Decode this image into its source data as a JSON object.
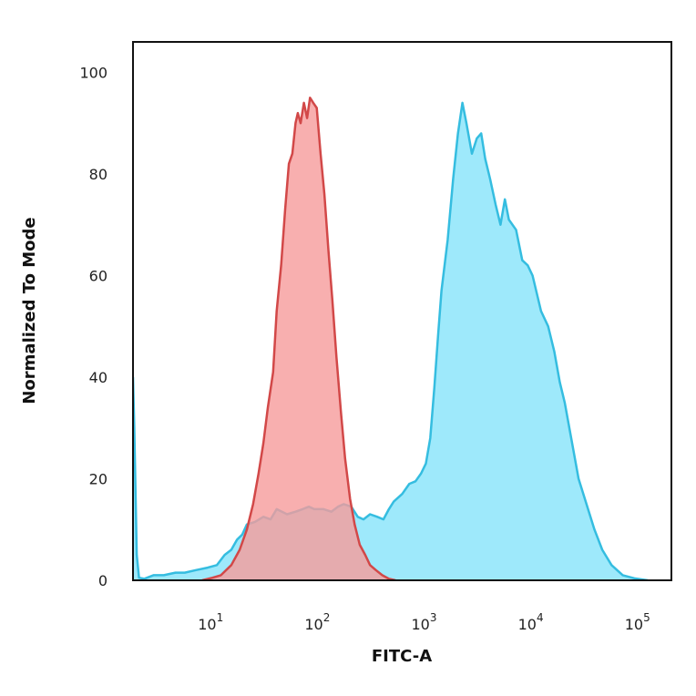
{
  "chart_data": {
    "type": "area",
    "title": "",
    "xlabel": "FITC-A",
    "ylabel": "Normalized To Mode",
    "x_scale": "log",
    "xlim": [
      1.8,
      200000
    ],
    "ylim": [
      0,
      106
    ],
    "grid": false,
    "legend": "none",
    "x_ticks": [
      {
        "value": 10,
        "base": "10",
        "exp": "1"
      },
      {
        "value": 100,
        "base": "10",
        "exp": "2"
      },
      {
        "value": 1000,
        "base": "10",
        "exp": "3"
      },
      {
        "value": 10000,
        "base": "10",
        "exp": "4"
      },
      {
        "value": 100000,
        "base": "10",
        "exp": "5"
      }
    ],
    "y_ticks": [
      0,
      20,
      40,
      60,
      80,
      100
    ],
    "series": [
      {
        "color_fill": "#9ee9fb",
        "color_line": "#35bde0",
        "x": [
          1.8,
          1.85,
          1.95,
          2.05,
          2.3,
          2.8,
          3.5,
          4.5,
          5.5,
          7,
          9,
          11,
          13,
          15,
          17,
          19,
          21,
          25,
          30,
          35,
          40,
          50,
          60,
          70,
          80,
          90,
          110,
          130,
          150,
          170,
          200,
          230,
          260,
          300,
          350,
          400,
          450,
          500,
          600,
          700,
          800,
          900,
          1000,
          1100,
          1200,
          1300,
          1400,
          1600,
          1800,
          2000,
          2200,
          2400,
          2700,
          3000,
          3300,
          3600,
          4000,
          4500,
          5000,
          5500,
          6000,
          7000,
          8000,
          9000,
          10000,
          12000,
          14000,
          16000,
          18000,
          20000,
          23000,
          27000,
          32000,
          38000,
          45000,
          55000,
          70000,
          90000,
          120000
        ],
        "y": [
          40,
          30,
          5,
          0.5,
          0.3,
          1,
          1,
          1.5,
          1.5,
          2,
          2.5,
          3,
          5,
          6,
          8,
          9,
          11,
          11.5,
          12.5,
          12,
          14,
          13,
          13.5,
          14,
          14.5,
          14,
          14,
          13.5,
          14.5,
          15,
          14.5,
          12.5,
          12,
          13,
          12.5,
          12,
          14,
          15.5,
          17,
          19,
          19.5,
          21,
          23,
          28,
          38,
          48,
          57,
          67,
          79,
          88,
          94,
          90,
          84,
          87,
          88,
          83,
          79,
          74,
          70,
          75,
          71,
          69,
          63,
          62,
          60,
          53,
          50,
          45,
          39,
          35,
          28,
          20,
          15,
          10,
          6,
          3,
          1,
          0.4,
          0
        ]
      },
      {
        "color_fill": "#f69b9b",
        "color_line": "#d24848",
        "x": [
          8,
          10,
          12,
          15,
          18,
          21,
          24,
          27,
          30,
          33,
          37,
          40,
          44,
          48,
          52,
          56,
          60,
          63,
          67,
          72,
          77,
          82,
          88,
          95,
          103,
          112,
          122,
          133,
          145,
          160,
          175,
          195,
          215,
          240,
          270,
          300,
          340,
          390,
          450,
          520
        ],
        "y": [
          0,
          0.5,
          1,
          3,
          6,
          10,
          15,
          21,
          27,
          34,
          41,
          53,
          62,
          73,
          82,
          84,
          90,
          92,
          90,
          94,
          91,
          95,
          94,
          93,
          84,
          76,
          65,
          55,
          44,
          33,
          24,
          16,
          11,
          7,
          5,
          3,
          2,
          1,
          0.3,
          0
        ]
      }
    ]
  }
}
